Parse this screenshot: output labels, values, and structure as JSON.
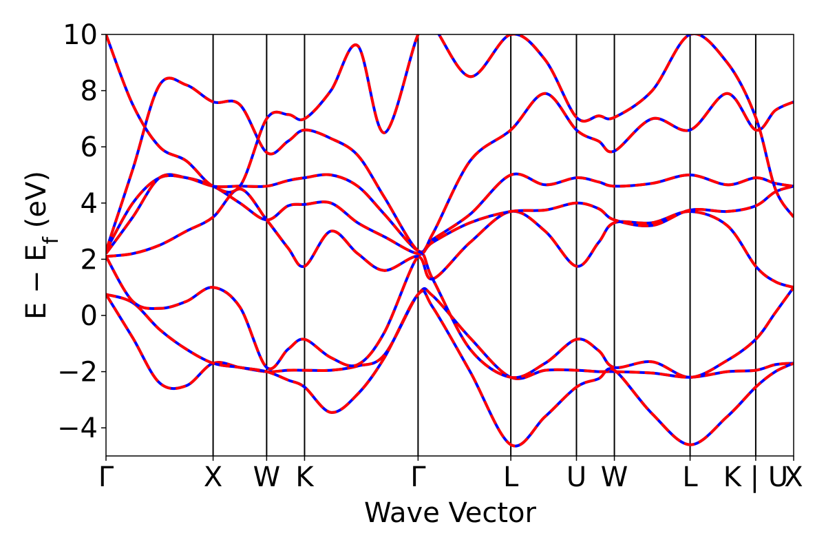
{
  "chart_data": {
    "type": "line",
    "xlabel": "Wave Vector",
    "ylabel": {
      "prefix": "E − E",
      "sub": "f",
      "suffix": " (eV)"
    },
    "ylim": [
      -5,
      10
    ],
    "yticks": [
      -4,
      -2,
      0,
      2,
      4,
      6,
      8,
      10
    ],
    "ytick_labels": [
      "−4",
      "−2",
      "0",
      "2",
      "4",
      "6",
      "8",
      "10"
    ],
    "kpath": [
      {
        "label": "Γ",
        "x": 0.0
      },
      {
        "label": "X",
        "x": 1.0
      },
      {
        "label": "W",
        "x": 1.5
      },
      {
        "label": "K",
        "x": 1.854
      },
      {
        "label": "Γ",
        "x": 2.914
      },
      {
        "label": "L",
        "x": 3.78
      },
      {
        "label": "U",
        "x": 4.393
      },
      {
        "label": "W",
        "x": 4.747
      },
      {
        "label": "L",
        "x": 5.454
      },
      {
        "label": "K | U",
        "x": 6.067
      },
      {
        "label": "X",
        "x": 6.421
      }
    ],
    "xlim": [
      0.0,
      6.421
    ],
    "line_styles": [
      {
        "color": "#0000ff",
        "dash": "solid"
      },
      {
        "color": "#ff0000",
        "dash": "dashed"
      }
    ],
    "series": [
      {
        "x": [
          0,
          0.25,
          0.5,
          0.75,
          1,
          1.25,
          1.5,
          1.7,
          1.854,
          2.1,
          2.35,
          2.6,
          2.914,
          3.05,
          3.4,
          3.78,
          4.1,
          4.393,
          4.6,
          4.747,
          5.1,
          5.454,
          5.8,
          6.067,
          6.25,
          6.421
        ],
        "y": [
          0.75,
          -0.8,
          -2.4,
          -2.5,
          -1.7,
          -1.85,
          -2.0,
          -1.95,
          -1.95,
          -1.95,
          -1.8,
          -1.4,
          0.75,
          0.7,
          -0.8,
          -2.2,
          -1.95,
          -1.95,
          -2.0,
          -2.0,
          -2.05,
          -2.2,
          -2.0,
          -1.95,
          -1.75,
          -1.7
        ]
      },
      {
        "x": [
          0,
          0.25,
          0.5,
          0.75,
          1,
          1.25,
          1.5,
          1.7,
          1.854,
          2.1,
          2.35,
          2.6,
          2.914,
          3.05,
          3.4,
          3.78,
          4.1,
          4.393,
          4.6,
          4.747,
          5.1,
          5.454,
          5.8,
          6.067,
          6.25,
          6.421
        ],
        "y": [
          0.75,
          0.45,
          -0.5,
          -1.2,
          -1.7,
          -1.85,
          -2.0,
          -2.3,
          -2.55,
          -3.45,
          -2.8,
          -1.5,
          0.75,
          0.3,
          -2.0,
          -4.6,
          -3.6,
          -2.55,
          -2.25,
          -1.95,
          -3.5,
          -4.6,
          -3.6,
          -2.55,
          -2.0,
          -1.7
        ]
      },
      {
        "x": [
          0,
          0.25,
          0.5,
          0.75,
          1,
          1.25,
          1.5,
          1.7,
          1.854,
          2.1,
          2.35,
          2.6,
          2.914,
          3.05,
          3.4,
          3.78,
          4.1,
          4.393,
          4.6,
          4.747,
          5.1,
          5.454,
          5.8,
          6.067,
          6.25,
          6.421
        ],
        "y": [
          2.1,
          0.5,
          0.25,
          0.5,
          1.0,
          0.3,
          -1.85,
          -1.2,
          -0.85,
          -1.5,
          -1.75,
          -0.6,
          2.1,
          1.3,
          -1.2,
          -2.2,
          -1.7,
          -0.85,
          -1.25,
          -1.85,
          -1.65,
          -2.2,
          -1.6,
          -0.85,
          0.1,
          1.0
        ]
      },
      {
        "x": [
          0,
          0.25,
          0.5,
          0.75,
          1,
          1.25,
          1.5,
          1.7,
          1.854,
          2.1,
          2.35,
          2.6,
          2.914,
          3.05,
          3.4,
          3.78,
          4.1,
          4.393,
          4.6,
          4.747,
          5.1,
          5.454,
          5.8,
          6.067,
          6.25,
          6.421
        ],
        "y": [
          2.1,
          2.2,
          2.5,
          3.0,
          3.5,
          4.5,
          3.4,
          2.4,
          1.75,
          3.0,
          2.2,
          1.6,
          2.1,
          1.3,
          2.6,
          3.7,
          3.0,
          1.75,
          2.6,
          3.3,
          3.3,
          3.7,
          3.2,
          1.75,
          1.2,
          1.0
        ]
      },
      {
        "x": [
          0,
          0.25,
          0.5,
          0.75,
          1,
          1.25,
          1.5,
          1.7,
          1.854,
          2.1,
          2.35,
          2.6,
          2.914,
          3.05,
          3.4,
          3.78,
          4.1,
          4.393,
          4.6,
          4.747,
          5.1,
          5.454,
          5.8,
          6.067,
          6.25,
          6.421
        ],
        "y": [
          2.2,
          3.5,
          4.9,
          4.9,
          4.6,
          4.0,
          3.4,
          3.9,
          3.95,
          4.0,
          3.3,
          2.8,
          2.2,
          2.6,
          3.3,
          3.7,
          3.75,
          4.0,
          3.8,
          3.4,
          3.2,
          3.75,
          3.7,
          3.9,
          4.4,
          4.6
        ]
      },
      {
        "x": [
          0,
          0.25,
          0.5,
          0.75,
          1,
          1.25,
          1.5,
          1.7,
          1.854,
          2.1,
          2.35,
          2.6,
          2.914,
          3.05,
          3.4,
          3.78,
          4.1,
          4.393,
          4.6,
          4.747,
          5.1,
          5.454,
          5.8,
          6.067,
          6.25,
          6.421
        ],
        "y": [
          2.3,
          4.0,
          4.9,
          4.9,
          4.6,
          4.6,
          4.6,
          4.8,
          4.9,
          5.0,
          4.6,
          3.6,
          2.3,
          2.7,
          3.6,
          5.0,
          4.65,
          4.9,
          4.75,
          4.6,
          4.7,
          5.0,
          4.65,
          4.9,
          4.7,
          4.6
        ]
      },
      {
        "x": [
          0,
          0.25,
          0.5,
          0.75,
          1,
          1.25,
          1.5,
          1.7,
          1.854,
          2.1,
          2.35,
          2.6,
          2.914,
          3.05,
          3.4,
          3.78,
          4.1,
          4.393,
          4.6,
          4.747,
          5.1,
          5.454,
          5.8,
          6.067,
          6.25,
          6.421
        ],
        "y": [
          2.3,
          5.2,
          8.2,
          8.2,
          7.6,
          7.5,
          5.8,
          6.2,
          6.6,
          6.3,
          5.7,
          4.2,
          2.3,
          2.9,
          5.5,
          6.6,
          7.9,
          6.6,
          6.2,
          5.85,
          7.0,
          6.6,
          7.9,
          6.6,
          7.3,
          7.6
        ]
      },
      {
        "x": [
          0,
          0.25,
          0.5,
          0.75,
          1,
          1.25,
          1.5,
          1.7,
          1.854,
          2.1,
          2.35,
          2.6,
          2.914,
          3.05,
          3.4,
          3.78,
          4.1,
          4.393,
          4.6,
          4.747,
          5.1,
          5.454,
          5.8,
          6.067,
          6.25,
          6.421
        ],
        "y": [
          10.0,
          7.5,
          6.0,
          5.5,
          4.6,
          4.6,
          7.0,
          7.15,
          7.0,
          8.0,
          9.6,
          6.5,
          10.0,
          10.3,
          8.5,
          10.0,
          9.1,
          7.05,
          7.1,
          7.05,
          8.0,
          10.0,
          9.0,
          7.05,
          4.5,
          3.5
        ]
      }
    ]
  }
}
